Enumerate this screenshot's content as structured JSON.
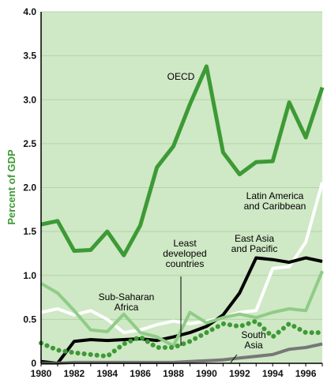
{
  "chart_data": {
    "type": "line",
    "title": "",
    "xlabel": "",
    "ylabel": "Percent of GDP",
    "xlim": [
      1980,
      1997
    ],
    "ylim": [
      0,
      4.0
    ],
    "grid": true,
    "x_ticks": [
      "1980",
      "1982",
      "1984",
      "1986",
      "1988",
      "1990",
      "1992",
      "1994",
      "1996"
    ],
    "y_ticks": [
      "0",
      "0.5",
      "1.0",
      "1.5",
      "2.0",
      "2.5",
      "3.0",
      "3.5",
      "4.0"
    ],
    "colors": {
      "plot_background": "#cfe8c5",
      "gridline": "#b4d3a9",
      "ylabel": "#3d9a35",
      "oecd": "#3d9a35",
      "latin_america": "#ffffff",
      "east_asia": "#000000",
      "sub_saharan": "#8fcc86",
      "least_developed": "#3d9a35",
      "south_asia": "#777777"
    },
    "x": [
      1980,
      1981,
      1982,
      1983,
      1984,
      1985,
      1986,
      1987,
      1988,
      1989,
      1990,
      1991,
      1992,
      1993,
      1994,
      1995,
      1996,
      1997
    ],
    "series": [
      {
        "name": "OECD",
        "key": "oecd",
        "style": "solid",
        "width": 5,
        "values": [
          1.58,
          1.62,
          1.28,
          1.29,
          1.5,
          1.23,
          1.57,
          2.23,
          2.47,
          2.95,
          3.38,
          2.4,
          2.15,
          2.29,
          2.3,
          2.97,
          2.57,
          3.14
        ]
      },
      {
        "name": "Latin America and Caribbean",
        "key": "latin_america",
        "style": "solid",
        "width": 4,
        "values": [
          0.58,
          0.62,
          0.55,
          0.6,
          0.5,
          0.35,
          0.38,
          0.44,
          0.48,
          0.45,
          0.48,
          0.52,
          0.58,
          0.6,
          1.08,
          1.1,
          1.38,
          2.06
        ]
      },
      {
        "name": "East Asia and Pacific",
        "key": "east_asia",
        "style": "solid",
        "width": 4,
        "values": [
          0.02,
          0.0,
          0.25,
          0.27,
          0.26,
          0.27,
          0.28,
          0.26,
          0.3,
          0.35,
          0.42,
          0.55,
          0.8,
          1.2,
          1.18,
          1.15,
          1.2,
          1.16
        ]
      },
      {
        "name": "Sub-Saharan Africa",
        "key": "sub_saharan",
        "style": "solid",
        "width": 4,
        "values": [
          0.91,
          0.8,
          0.6,
          0.38,
          0.36,
          0.56,
          0.35,
          0.3,
          0.2,
          0.58,
          0.46,
          0.52,
          0.56,
          0.52,
          0.58,
          0.62,
          0.6,
          1.05
        ]
      },
      {
        "name": "Least developed countries",
        "key": "least_developed",
        "style": "dotted",
        "width": 5,
        "values": [
          0.23,
          0.15,
          0.12,
          0.1,
          0.08,
          0.22,
          0.3,
          0.18,
          0.18,
          0.25,
          0.35,
          0.45,
          0.42,
          0.48,
          0.3,
          0.45,
          0.35,
          0.35
        ]
      },
      {
        "name": "South Asia",
        "key": "south_asia",
        "style": "solid",
        "width": 4,
        "values": [
          0.0,
          0.0,
          0.01,
          0.01,
          0.01,
          0.01,
          0.01,
          0.01,
          0.01,
          0.02,
          0.03,
          0.04,
          0.06,
          0.08,
          0.1,
          0.16,
          0.18,
          0.22
        ]
      }
    ],
    "annotations": [
      {
        "key": "oecd",
        "lines": [
          "OECD"
        ]
      },
      {
        "key": "latin_america",
        "lines": [
          "Latin America",
          "and Caribbean"
        ]
      },
      {
        "key": "east_asia",
        "lines": [
          "East Asia",
          "and Pacific"
        ]
      },
      {
        "key": "least_developed",
        "lines": [
          "Least",
          "developed",
          "countries"
        ]
      },
      {
        "key": "sub_saharan",
        "lines": [
          "Sub-Saharan",
          "Africa"
        ]
      },
      {
        "key": "south_asia",
        "lines": [
          "South",
          "Asia"
        ]
      }
    ]
  }
}
